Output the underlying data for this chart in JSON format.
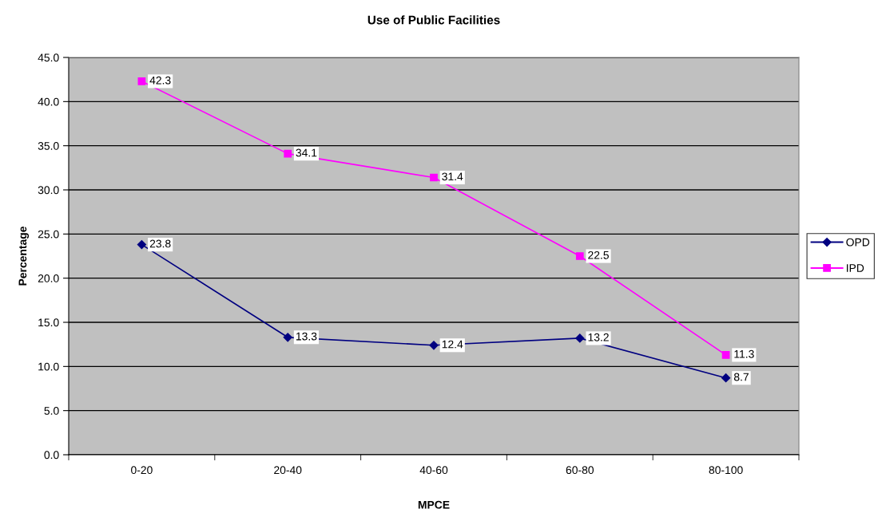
{
  "chart_data": {
    "type": "line",
    "title": "Use of Public Facilities",
    "xlabel": "MPCE",
    "ylabel": "Percentage",
    "categories": [
      "0-20",
      "20-40",
      "40-60",
      "60-80",
      "80-100"
    ],
    "series": [
      {
        "name": "OPD",
        "color": "#000080",
        "marker": "diamond",
        "values": [
          23.8,
          13.3,
          12.4,
          13.2,
          8.7
        ]
      },
      {
        "name": "IPD",
        "color": "#ff00ff",
        "marker": "square",
        "values": [
          42.3,
          34.1,
          31.4,
          22.5,
          11.3
        ]
      }
    ],
    "ylim": [
      0,
      45
    ],
    "yticks": [
      {
        "value": 0,
        "label": "0.0"
      },
      {
        "value": 5,
        "label": "5.0"
      },
      {
        "value": 10,
        "label": "10.0"
      },
      {
        "value": 15,
        "label": "15.0"
      },
      {
        "value": 20,
        "label": "20.0"
      },
      {
        "value": 25,
        "label": "25.0"
      },
      {
        "value": 30,
        "label": "30.0"
      },
      {
        "value": 35,
        "label": "35.0"
      },
      {
        "value": 40,
        "label": "40.0"
      },
      {
        "value": 45,
        "label": "45.0"
      }
    ],
    "grid": "y",
    "legend": "right",
    "line_style": "solid",
    "data_labels": true
  }
}
